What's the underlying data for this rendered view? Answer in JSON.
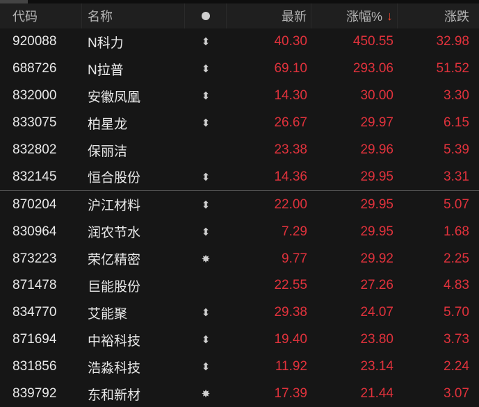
{
  "header": {
    "code": "代码",
    "name": "名称",
    "latest": "最新",
    "change_pct": "涨幅%",
    "sort_arrow": "↓",
    "change": "涨跌"
  },
  "colors": {
    "up": "#e0323c",
    "sort_arrow": "#e8452f",
    "background": "#161616"
  },
  "rows": [
    {
      "code": "920088",
      "name": "N科力",
      "mark": "⬍",
      "latest": "40.30",
      "pct": "450.55",
      "chg": "32.98"
    },
    {
      "code": "688726",
      "name": "N拉普",
      "mark": "⬍",
      "latest": "69.10",
      "pct": "293.06",
      "chg": "51.52"
    },
    {
      "code": "832000",
      "name": "安徽凤凰",
      "mark": "⬍",
      "latest": "14.30",
      "pct": "30.00",
      "chg": "3.30"
    },
    {
      "code": "833075",
      "name": "柏星龙",
      "mark": "⬍",
      "latest": "26.67",
      "pct": "29.97",
      "chg": "6.15"
    },
    {
      "code": "832802",
      "name": "保丽洁",
      "mark": "",
      "latest": "23.38",
      "pct": "29.96",
      "chg": "5.39"
    },
    {
      "code": "832145",
      "name": "恒合股份",
      "mark": "⬍",
      "latest": "14.36",
      "pct": "29.95",
      "chg": "3.31"
    },
    {
      "code": "870204",
      "name": "沪江材料",
      "mark": "⬍",
      "latest": "22.00",
      "pct": "29.95",
      "chg": "5.07"
    },
    {
      "code": "830964",
      "name": "润农节水",
      "mark": "⬍",
      "latest": "7.29",
      "pct": "29.95",
      "chg": "1.68"
    },
    {
      "code": "873223",
      "name": "荣亿精密",
      "mark": "✸",
      "latest": "9.77",
      "pct": "29.92",
      "chg": "2.25"
    },
    {
      "code": "871478",
      "name": "巨能股份",
      "mark": "",
      "latest": "22.55",
      "pct": "27.26",
      "chg": "4.83"
    },
    {
      "code": "834770",
      "name": "艾能聚",
      "mark": "⬍",
      "latest": "29.38",
      "pct": "24.07",
      "chg": "5.70"
    },
    {
      "code": "871694",
      "name": "中裕科技",
      "mark": "⬍",
      "latest": "19.40",
      "pct": "23.80",
      "chg": "3.73"
    },
    {
      "code": "831856",
      "name": "浩淼科技",
      "mark": "⬍",
      "latest": "11.92",
      "pct": "23.14",
      "chg": "2.24"
    },
    {
      "code": "839792",
      "name": "东和新材",
      "mark": "✸",
      "latest": "17.39",
      "pct": "21.44",
      "chg": "3.07"
    }
  ]
}
